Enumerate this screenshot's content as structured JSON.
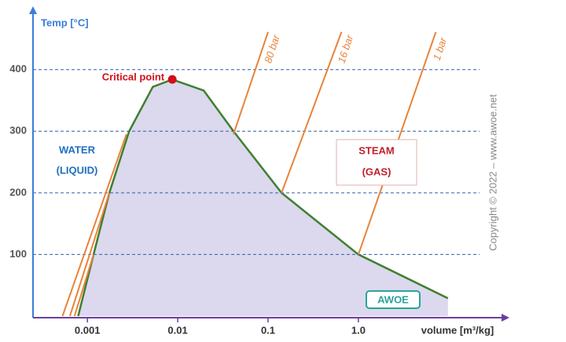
{
  "chart_data": {
    "type": "line",
    "y_label": "Temp [°C]",
    "x_label": "volume [m³/kg]",
    "log_x": true,
    "grid": true,
    "xlim": [
      0.00025,
      40
    ],
    "ylim": [
      0,
      490
    ],
    "xticks": [
      0.001,
      0.01,
      0.1,
      {
        "value": 1,
        "label": "1.0"
      }
    ],
    "yticks": [
      100,
      200,
      300,
      400
    ],
    "dome": {
      "color": "#3f7f2f",
      "fill": "#dcd8ee",
      "x": [
        0.00079,
        0.00117,
        0.00175,
        0.0029,
        0.0053,
        0.0087,
        0.0194,
        0.0414,
        0.141,
        1.0,
        9.8
      ],
      "y": [
        0,
        100,
        200,
        300,
        372,
        384,
        366,
        300,
        200,
        100,
        29
      ]
    },
    "critical_point": {
      "label": "Critical point",
      "x": 0.0087,
      "y": 384,
      "color": "#d0101a"
    },
    "isobars": [
      {
        "name": "80 bar",
        "color": "#e8833a",
        "x": [
          0.00053,
          0.0027,
          null,
          0.0414,
          0.1
        ],
        "y": [
          0,
          295,
          null,
          295,
          461
        ]
      },
      {
        "name": "16 bar",
        "color": "#e8833a",
        "x": [
          0.00064,
          0.00175,
          null,
          0.141,
          0.65
        ],
        "y": [
          0,
          200,
          null,
          200,
          461
        ]
      },
      {
        "name": "1 bar",
        "color": "#e8833a",
        "x": [
          0.00072,
          0.00117,
          null,
          1.0,
          7.2
        ],
        "y": [
          0,
          100,
          null,
          100,
          461
        ]
      }
    ],
    "liquid_label": [
      "WATER",
      "(LIQUID)"
    ],
    "gas_label": [
      "STEAM",
      "(GAS)"
    ],
    "copyright": "Copyright © 2022 – www.awoe.net",
    "logo": "AWOE"
  }
}
